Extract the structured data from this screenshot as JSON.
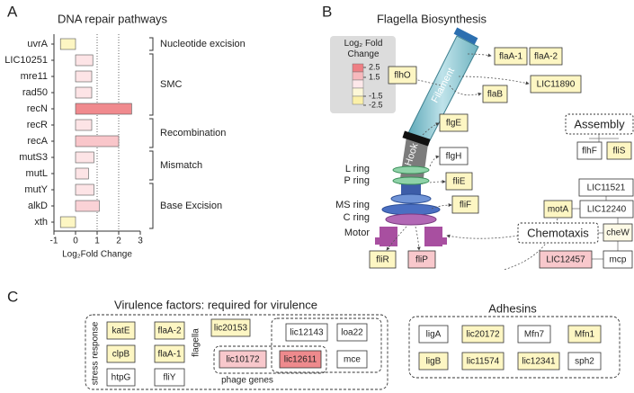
{
  "panel_labels": [
    "A",
    "B",
    "C"
  ],
  "chart_data": {
    "type": "bar",
    "orientation": "horizontal",
    "title": "DNA repair pathways",
    "categories": [
      "uvrA",
      "LIC10251",
      "mre11",
      "rad50",
      "recN",
      "recR",
      "recA",
      "mutS3",
      "mutL",
      "mutY",
      "alkD",
      "xth"
    ],
    "values": [
      -0.7,
      0.8,
      0.75,
      0.75,
      2.6,
      0.75,
      2.0,
      0.85,
      0.6,
      0.85,
      1.1,
      -0.7
    ],
    "colors": [
      "#fdf6c3",
      "#fde4e6",
      "#fde4e6",
      "#fde4e6",
      "#f08a8e",
      "#fde4e6",
      "#f9c6ca",
      "#fde4e6",
      "#fde4e6",
      "#fde4e6",
      "#fad2d6",
      "#fdf6c3"
    ],
    "xlim": [
      -1,
      3
    ],
    "xticks": [
      -1,
      0,
      1,
      2,
      3
    ],
    "x_label": "Log₂Fold Change",
    "reference_lines": [
      1,
      2
    ],
    "groups": [
      {
        "label": "Nucleotide excision",
        "from": "uvrA",
        "to": "uvrA"
      },
      {
        "label": "SMC",
        "from": "LIC10251",
        "to": "recN"
      },
      {
        "label": "Recombination",
        "from": "recR",
        "to": "recA"
      },
      {
        "label": "Mismatch",
        "from": "mutS3",
        "to": "mutL"
      },
      {
        "label": "Base Excision",
        "from": "mutY",
        "to": "xth"
      }
    ]
  },
  "flagella": {
    "title": "Flagella Biosynthesis",
    "legend": {
      "title": "Log₂ Fold Change",
      "ticks": [
        2.5,
        1.5,
        -1.5,
        -2.5
      ],
      "colors": [
        "#ee7f84",
        "#f7b9bd",
        "#fde8ea",
        "#fdf8d8",
        "#fbf0a8"
      ]
    },
    "structure_labels": [
      "Filament",
      "Hook",
      "L ring",
      "P ring",
      "MS ring",
      "C ring",
      "Motor"
    ],
    "group_labels": [
      "Assembly",
      "Chemotaxis"
    ],
    "genes": [
      {
        "label": "flaA-1",
        "color": "#fdf6c3"
      },
      {
        "label": "flaA-2",
        "color": "#fdf6c3"
      },
      {
        "label": "flhO",
        "color": "#fdf6c3"
      },
      {
        "label": "LIC11890",
        "color": "#fdf6c3"
      },
      {
        "label": "flaB",
        "color": "#fdf6c3"
      },
      {
        "label": "flgE",
        "color": "#fdf6c3"
      },
      {
        "label": "flhF",
        "color": "#ffffff"
      },
      {
        "label": "fliS",
        "color": "#fdf6c3"
      },
      {
        "label": "flgH",
        "color": "#ffffff"
      },
      {
        "label": "fliE",
        "color": "#fdf6c3"
      },
      {
        "label": "LIC11521",
        "color": "#ffffff"
      },
      {
        "label": "motA",
        "color": "#fdf6c3"
      },
      {
        "label": "LIC12240",
        "color": "#ffffff"
      },
      {
        "label": "fliF",
        "color": "#fdf6c3"
      },
      {
        "label": "cheW",
        "color": "#fdfae6"
      },
      {
        "label": "LIC12457",
        "color": "#f8c8cc"
      },
      {
        "label": "mcp",
        "color": "#ffffff"
      },
      {
        "label": "fliR",
        "color": "#fdf6c3"
      },
      {
        "label": "fliP",
        "color": "#f8c8cc"
      }
    ]
  },
  "virulence": {
    "title": "Virulence factors: required for virulence",
    "side_labels": [
      "stress response",
      "flagella",
      "phage genes"
    ],
    "genes": [
      {
        "label": "katE",
        "color": "#fdf6c3"
      },
      {
        "label": "flaA-2",
        "color": "#fdf6c3"
      },
      {
        "label": "lic20153",
        "color": "#fdf6c3"
      },
      {
        "label": "lic12143",
        "color": "#ffffff"
      },
      {
        "label": "loa22",
        "color": "#ffffff"
      },
      {
        "label": "clpB",
        "color": "#fdf6c3"
      },
      {
        "label": "flaA-1",
        "color": "#fdf6c3"
      },
      {
        "label": "htpG",
        "color": "#ffffff"
      },
      {
        "label": "fliY",
        "color": "#ffffff"
      },
      {
        "label": "lic10172",
        "color": "#f8c8cc"
      },
      {
        "label": "lic12611",
        "color": "#ee8a8d"
      },
      {
        "label": "mce",
        "color": "#ffffff"
      }
    ],
    "adhesins": {
      "title": "Adhesins",
      "genes": [
        {
          "label": "ligA",
          "color": "#ffffff"
        },
        {
          "label": "lic20172",
          "color": "#fdf6c3"
        },
        {
          "label": "Mfn7",
          "color": "#ffffff"
        },
        {
          "label": "Mfn1",
          "color": "#fdf6c3"
        },
        {
          "label": "ligB",
          "color": "#fdf6c3"
        },
        {
          "label": "lic11574",
          "color": "#fdf6c3"
        },
        {
          "label": "lic12341",
          "color": "#fdf6c3"
        },
        {
          "label": "sph2",
          "color": "#ffffff"
        }
      ]
    }
  }
}
